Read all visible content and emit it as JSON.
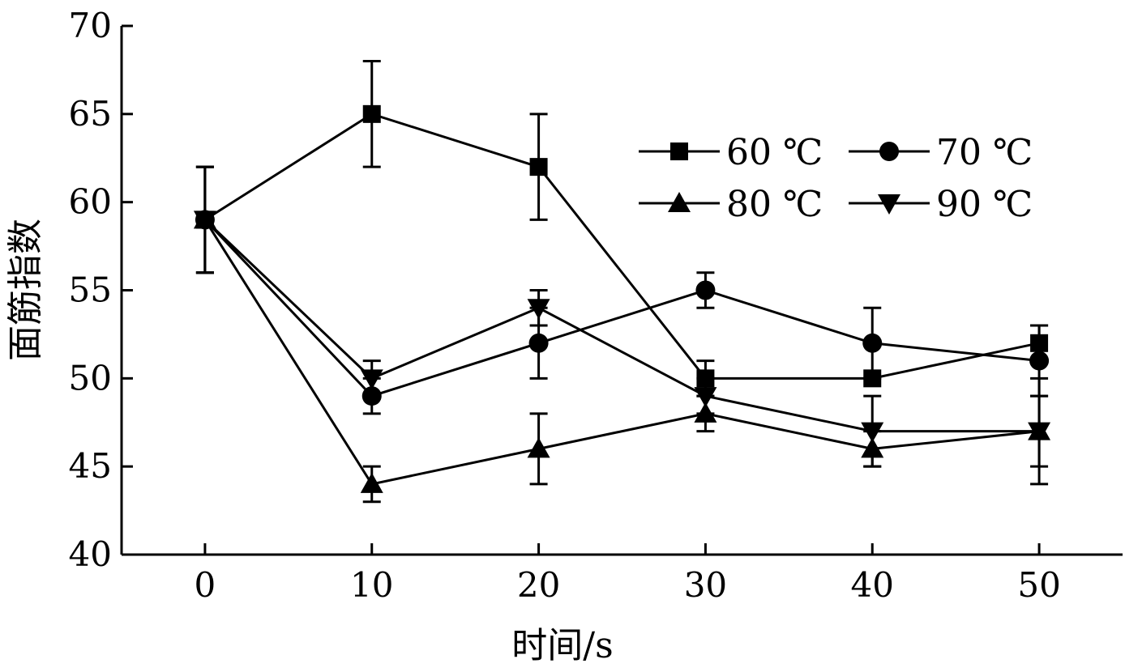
{
  "chart_data": {
    "type": "line",
    "xlabel": "时间/s",
    "ylabel": "面筋指数",
    "x": [
      0,
      10,
      20,
      30,
      40,
      50
    ],
    "xlim": [
      -5,
      55
    ],
    "ylim": [
      40,
      70
    ],
    "x_ticks": [
      0,
      10,
      20,
      30,
      40,
      50
    ],
    "y_ticks": [
      40,
      45,
      50,
      55,
      60,
      65,
      70
    ],
    "grid": false,
    "legend_position": "top-right",
    "series": [
      {
        "name": "60 ℃",
        "marker": "square",
        "values": [
          59,
          65,
          62,
          50,
          50,
          52
        ],
        "errors": [
          3,
          3,
          3,
          1,
          0,
          1
        ]
      },
      {
        "name": "70 ℃",
        "marker": "circle",
        "values": [
          59,
          49,
          52,
          55,
          52,
          51
        ],
        "errors": [
          3,
          1,
          2,
          1,
          2,
          2
        ]
      },
      {
        "name": "80 ℃",
        "marker": "triangle-up",
        "values": [
          59,
          44,
          46,
          48,
          46,
          47
        ],
        "errors": [
          3,
          1,
          2,
          1,
          1,
          3
        ]
      },
      {
        "name": "90 ℃",
        "marker": "triangle-down",
        "values": [
          59,
          50,
          54,
          49,
          47,
          47
        ],
        "errors": [
          3,
          1,
          1,
          1,
          2,
          2
        ]
      }
    ]
  }
}
